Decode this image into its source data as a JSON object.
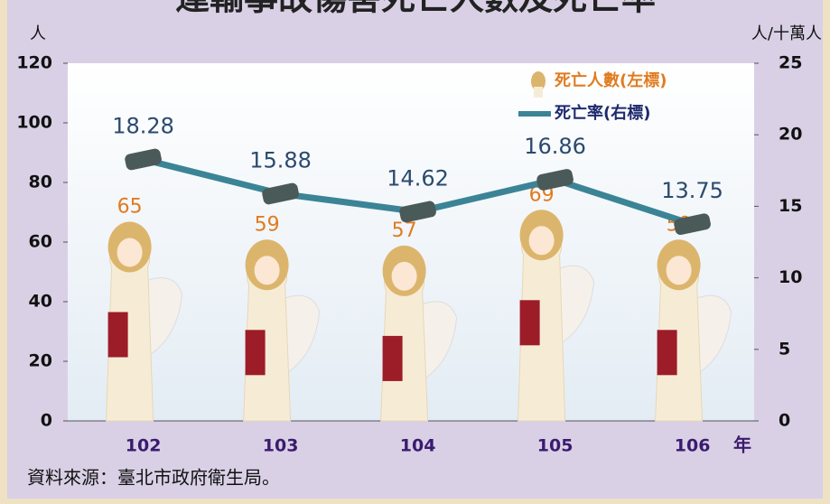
{
  "chart_data": {
    "type": "bar",
    "title": "運輸事故傷害死亡人數及死亡率",
    "categories": [
      "102",
      "103",
      "104",
      "105",
      "106"
    ],
    "series": [
      {
        "name": "死亡人數(左標)",
        "type": "bar",
        "color": "#e07b20",
        "values": [
          65,
          59,
          57,
          69,
          59
        ]
      },
      {
        "name": "死亡率(右標)",
        "type": "line",
        "axis": "y2",
        "color": "#3b8496",
        "values": [
          18.28,
          15.88,
          14.62,
          16.86,
          13.75
        ]
      }
    ],
    "ylabel": "人",
    "y2label": "人/十萬人",
    "xlabel": "年",
    "ylim": [
      0,
      120
    ],
    "yticks": [
      0,
      20,
      40,
      60,
      80,
      100,
      120
    ],
    "y2lim": [
      0,
      25
    ],
    "y2ticks": [
      0,
      5,
      10,
      15,
      20,
      25
    ],
    "legend": "upper right",
    "source": "資料來源：臺北市政府衛生局。"
  }
}
